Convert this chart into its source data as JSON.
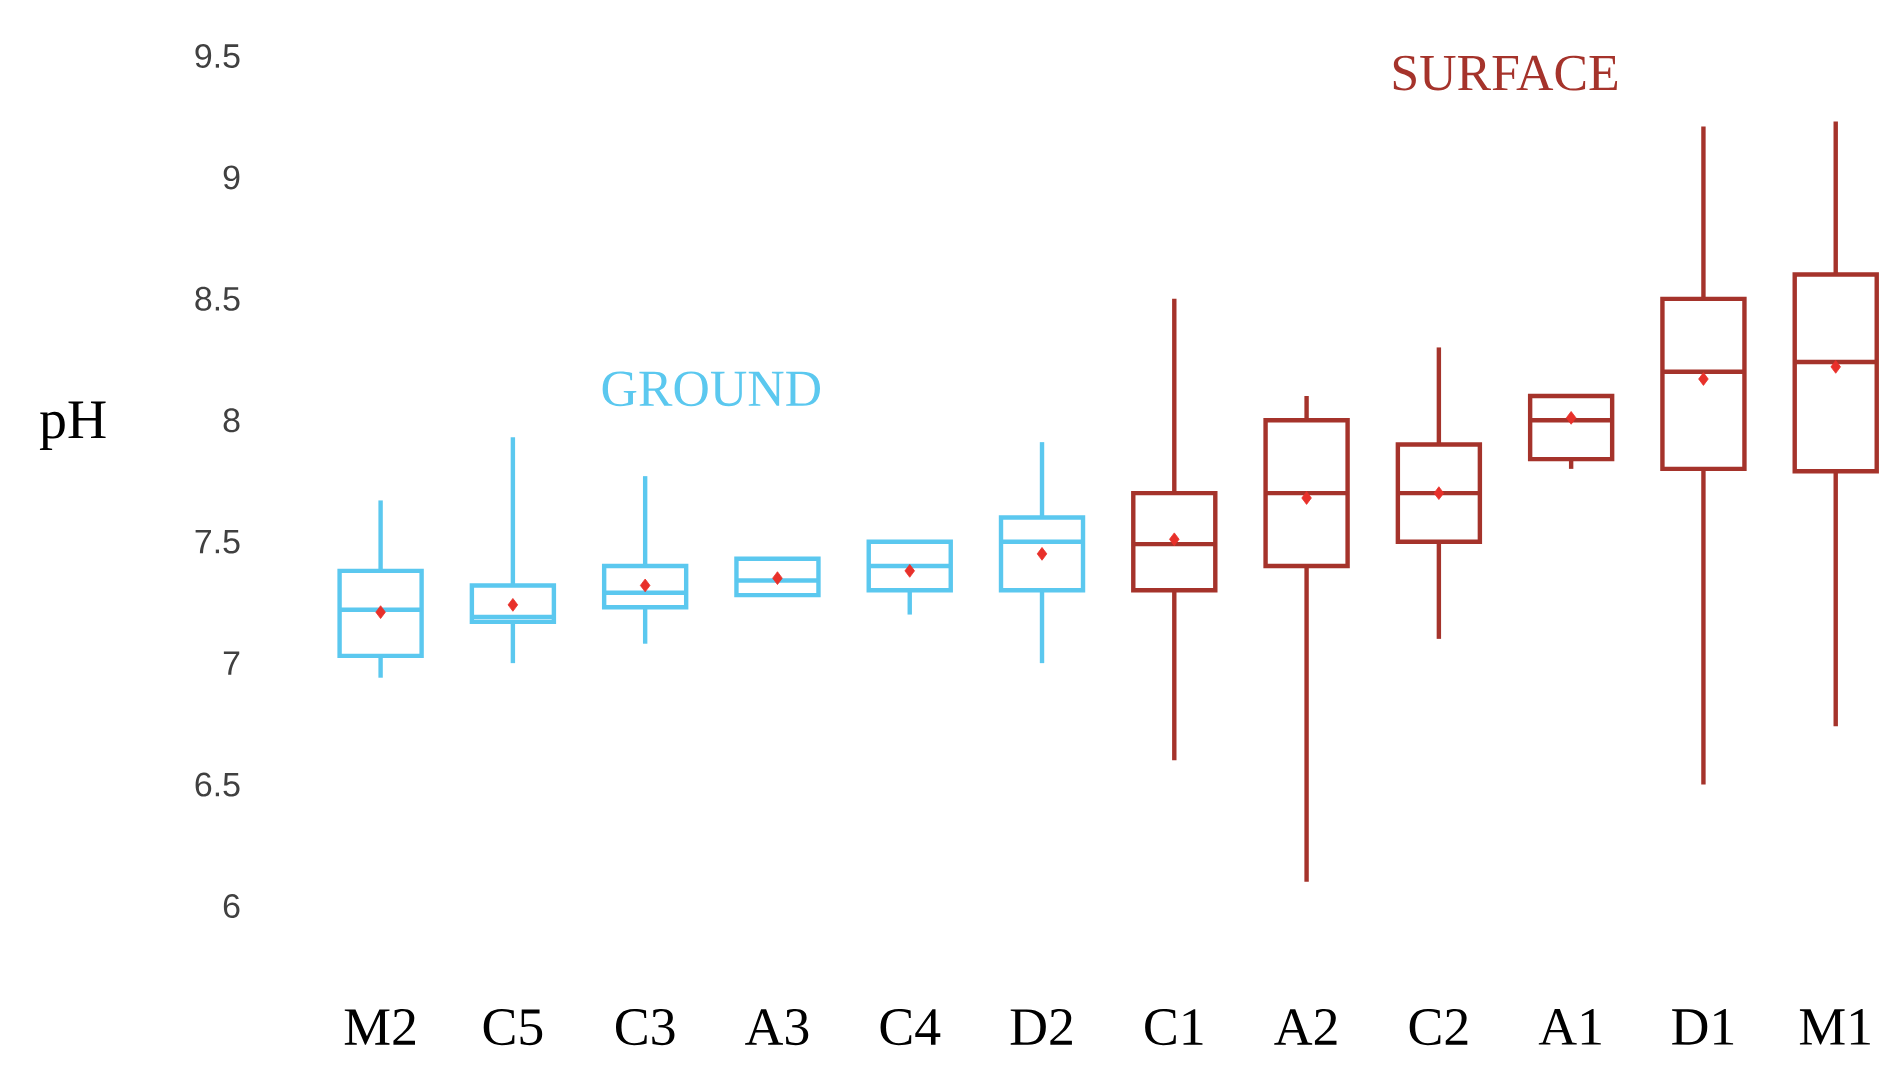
{
  "chart_data": {
    "type": "box",
    "ylabel": "pH",
    "categories": [
      "M2",
      "C5",
      "C3",
      "A3",
      "C4",
      "D2",
      "C1",
      "A2",
      "C2",
      "A1",
      "D1",
      "M1"
    ],
    "ylim": [
      6,
      9.5
    ],
    "yticks": [
      6,
      6.5,
      7,
      7.5,
      8,
      8.5,
      9,
      9.5
    ],
    "series": [
      {
        "name": "GROUND",
        "color": "#5bc8ef",
        "boxes": [
          {
            "low": 6.94,
            "q1": 7.03,
            "median": 7.22,
            "q3": 7.38,
            "high": 7.67,
            "mean": 7.21
          },
          {
            "low": 7.0,
            "q1": 7.17,
            "median": 7.19,
            "q3": 7.32,
            "high": 7.93,
            "mean": 7.24
          },
          {
            "low": 7.08,
            "q1": 7.23,
            "median": 7.29,
            "q3": 7.4,
            "high": 7.77,
            "mean": 7.32
          },
          {
            "low": 7.28,
            "q1": 7.28,
            "median": 7.34,
            "q3": 7.43,
            "high": 7.43,
            "mean": 7.35
          },
          {
            "low": 7.2,
            "q1": 7.3,
            "median": 7.4,
            "q3": 7.5,
            "high": 7.5,
            "mean": 7.38
          },
          {
            "low": 7.0,
            "q1": 7.3,
            "median": 7.5,
            "q3": 7.6,
            "high": 7.91,
            "mean": 7.45
          },
          null,
          null,
          null,
          null,
          null,
          null
        ]
      },
      {
        "name": "SURFACE",
        "color": "#a5332b",
        "boxes": [
          null,
          null,
          null,
          null,
          null,
          null,
          {
            "low": 6.6,
            "q1": 7.3,
            "median": 7.49,
            "q3": 7.7,
            "high": 8.5,
            "mean": 7.51
          },
          {
            "low": 6.1,
            "q1": 7.4,
            "median": 7.7,
            "q3": 8.0,
            "high": 8.1,
            "mean": 7.68
          },
          {
            "low": 7.1,
            "q1": 7.5,
            "median": 7.7,
            "q3": 7.9,
            "high": 8.3,
            "mean": 7.7
          },
          {
            "low": 7.8,
            "q1": 7.84,
            "median": 8.0,
            "q3": 8.1,
            "high": 8.1,
            "mean": 8.01
          },
          {
            "low": 6.5,
            "q1": 7.8,
            "median": 8.2,
            "q3": 8.5,
            "high": 9.21,
            "mean": 8.17
          },
          {
            "low": 6.74,
            "q1": 7.79,
            "median": 8.24,
            "q3": 8.6,
            "high": 9.23,
            "mean": 8.22
          }
        ]
      }
    ]
  }
}
